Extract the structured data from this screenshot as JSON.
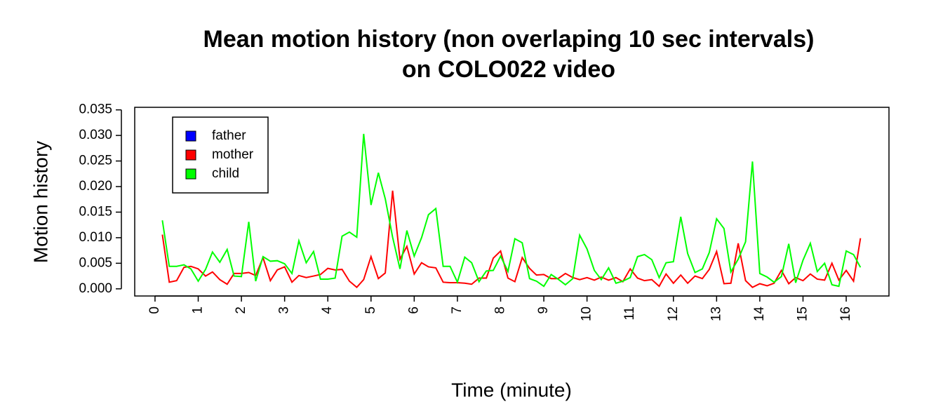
{
  "chart_data": {
    "type": "line",
    "title": [
      "Mean motion history (non overlaping 10 sec intervals)",
      "on COLO022 video"
    ],
    "x_label": "Time (minute)",
    "y_label": "Motion history",
    "x": [
      0.17,
      0.33,
      0.5,
      0.67,
      0.83,
      1,
      1.17,
      1.33,
      1.5,
      1.67,
      1.83,
      2,
      2.17,
      2.33,
      2.5,
      2.67,
      2.83,
      3,
      3.17,
      3.33,
      3.5,
      3.67,
      3.83,
      4,
      4.17,
      4.33,
      4.5,
      4.67,
      4.83,
      5,
      5.17,
      5.33,
      5.5,
      5.67,
      5.83,
      6,
      6.17,
      6.33,
      6.5,
      6.67,
      6.83,
      7,
      7.17,
      7.33,
      7.5,
      7.67,
      7.83,
      8,
      8.17,
      8.33,
      8.5,
      8.67,
      8.83,
      9,
      9.17,
      9.33,
      9.5,
      9.67,
      9.83,
      10,
      10.17,
      10.33,
      10.5,
      10.67,
      10.83,
      11,
      11.17,
      11.33,
      11.5,
      11.67,
      11.83,
      12,
      12.17,
      12.33,
      12.5,
      12.67,
      12.83,
      13,
      13.17,
      13.33,
      13.5,
      13.67,
      13.83,
      14,
      14.17,
      14.33,
      14.5,
      14.67,
      14.83,
      15,
      15.17,
      15.33,
      15.5,
      15.67,
      15.83,
      16,
      16.17,
      16.33
    ],
    "series": [
      {
        "name": "father",
        "color": "#0000ff",
        "values": [
          null,
          null,
          null,
          null,
          null,
          null,
          null,
          null,
          null,
          null,
          null,
          null,
          null,
          null,
          null,
          null,
          null,
          null,
          null,
          null,
          null,
          null,
          null,
          null,
          null,
          null,
          null,
          null,
          null,
          null,
          null,
          null,
          null,
          null,
          null,
          null,
          null,
          null,
          null,
          null,
          null,
          null,
          null,
          null,
          null,
          null,
          null,
          null,
          null,
          null,
          null,
          null,
          null,
          null,
          null,
          null,
          null,
          null,
          null,
          null,
          null,
          null,
          null,
          null,
          null,
          null,
          null,
          null,
          null,
          null,
          null,
          null,
          null,
          null,
          null,
          null,
          null,
          null,
          null,
          null,
          null,
          null,
          null,
          null,
          null,
          null,
          null,
          null,
          null,
          null,
          null,
          null,
          null,
          null,
          null,
          null,
          null,
          null
        ]
      },
      {
        "name": "mother",
        "color": "#ff0000",
        "values": [
          0.0106,
          0.0013,
          0.0016,
          0.0042,
          0.0044,
          0.0039,
          0.0025,
          0.0033,
          0.0018,
          0.0009,
          0.003,
          0.003,
          0.0032,
          0.0026,
          0.0061,
          0.0016,
          0.0037,
          0.0043,
          0.0013,
          0.0026,
          0.0022,
          0.0025,
          0.0028,
          0.004,
          0.0037,
          0.0038,
          0.0015,
          0.0003,
          0.0018,
          0.0063,
          0.002,
          0.0031,
          0.0192,
          0.0058,
          0.0083,
          0.0029,
          0.0051,
          0.0043,
          0.0041,
          0.0013,
          0.0012,
          0.0012,
          0.0011,
          0.0009,
          0.0021,
          0.0021,
          0.006,
          0.0074,
          0.0021,
          0.0014,
          0.0061,
          0.004,
          0.0027,
          0.0028,
          0.002,
          0.002,
          0.003,
          0.0022,
          0.0018,
          0.0022,
          0.0017,
          0.0023,
          0.0017,
          0.0022,
          0.0014,
          0.0039,
          0.0021,
          0.0016,
          0.0018,
          0.0005,
          0.0029,
          0.0011,
          0.0027,
          0.0011,
          0.0025,
          0.002,
          0.0038,
          0.0073,
          0.001,
          0.0011,
          0.0089,
          0.0016,
          0.0003,
          0.001,
          0.0006,
          0.0011,
          0.0036,
          0.001,
          0.0022,
          0.0016,
          0.0029,
          0.0019,
          0.0017,
          0.005,
          0.0017,
          0.0036,
          0.0015,
          0.0099
        ]
      },
      {
        "name": "child",
        "color": "#00ff00",
        "values": [
          0.0134,
          0.0044,
          0.0044,
          0.0047,
          0.0039,
          0.0015,
          0.0038,
          0.0072,
          0.0052,
          0.0077,
          0.0025,
          0.0024,
          0.0131,
          0.0015,
          0.0063,
          0.0054,
          0.0055,
          0.0049,
          0.003,
          0.0094,
          0.0051,
          0.0073,
          0.0019,
          0.0019,
          0.0021,
          0.0103,
          0.0111,
          0.0101,
          0.0303,
          0.0164,
          0.0227,
          0.0176,
          0.0101,
          0.0039,
          0.0114,
          0.0064,
          0.01,
          0.0145,
          0.0157,
          0.0044,
          0.0044,
          0.0013,
          0.0062,
          0.0051,
          0.0014,
          0.0035,
          0.0036,
          0.0064,
          0.0034,
          0.0098,
          0.009,
          0.002,
          0.0015,
          0.0005,
          0.0028,
          0.0019,
          0.0008,
          0.002,
          0.0105,
          0.0078,
          0.0036,
          0.0018,
          0.0041,
          0.0011,
          0.0015,
          0.0022,
          0.0063,
          0.0067,
          0.0057,
          0.0022,
          0.0051,
          0.0053,
          0.0141,
          0.0069,
          0.0032,
          0.0039,
          0.0071,
          0.0137,
          0.0118,
          0.0033,
          0.0058,
          0.0092,
          0.0249,
          0.003,
          0.0023,
          0.0013,
          0.0024,
          0.0088,
          0.0012,
          0.0056,
          0.0089,
          0.0034,
          0.005,
          0.0008,
          0.0005,
          0.0074,
          0.0067,
          0.0042
        ]
      }
    ],
    "xlim": [
      -0.47,
      16.99
    ],
    "ylim": [
      -0.0014,
      0.0355
    ],
    "xticks": [
      0,
      1,
      2,
      3,
      4,
      5,
      6,
      7,
      8,
      9,
      10,
      11,
      12,
      13,
      14,
      15,
      16
    ],
    "yticks": [
      {
        "value": 0,
        "label": "0.000"
      },
      0.005,
      {
        "value": 0.01,
        "label": "0.010"
      },
      0.015,
      {
        "value": 0.02,
        "label": "0.020"
      },
      0.025,
      {
        "value": 0.03,
        "label": "0.030"
      },
      0.035
    ],
    "legend": "topleft"
  }
}
